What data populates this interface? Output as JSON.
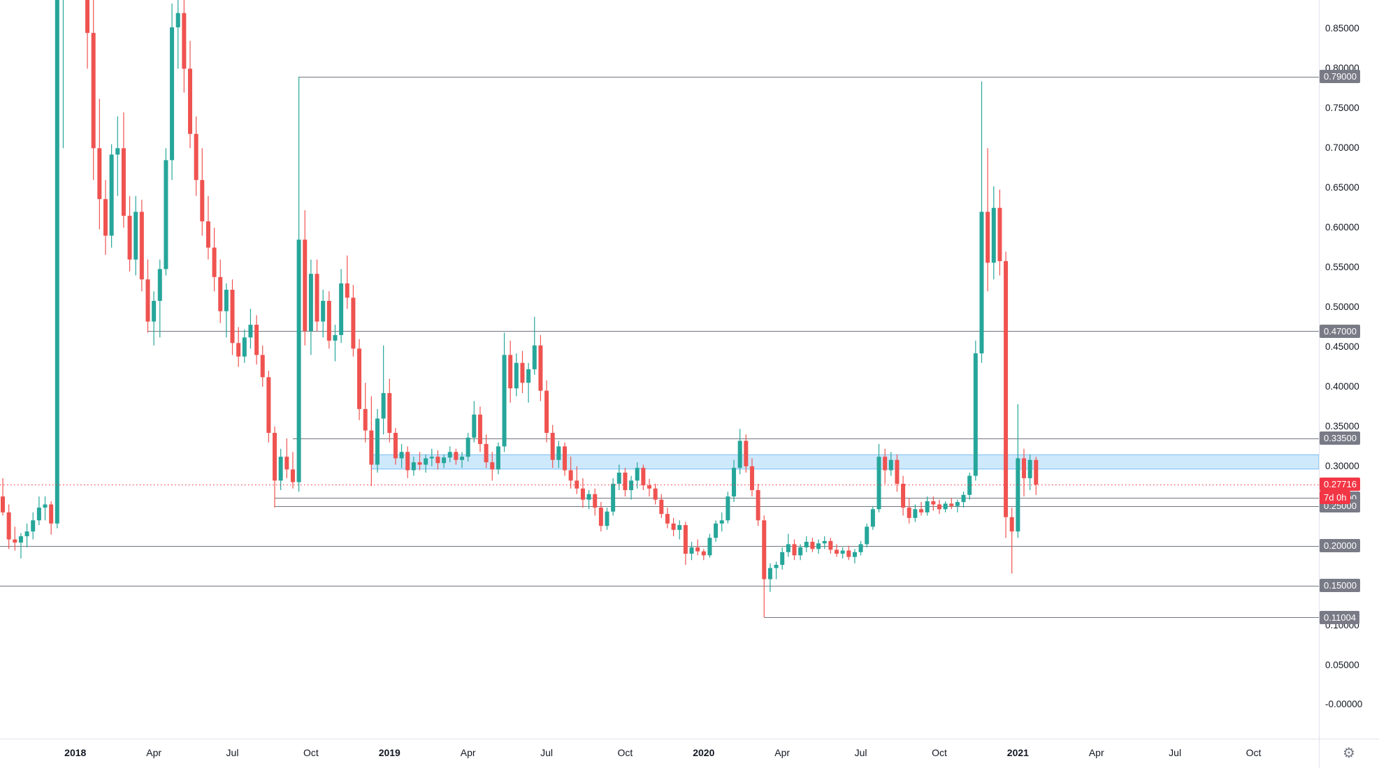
{
  "chart_data": {
    "type": "candlestick",
    "colors": {
      "up": "#26a69a",
      "down": "#ef5350",
      "current_price": "#f23645",
      "badge_bg": "#787b86",
      "line": "#71757e",
      "axis_text": "#131722",
      "separator": "#e0e3eb",
      "zone_fill": "rgba(33,150,243,0.22)",
      "zone_border": "rgba(33,150,243,0.55)"
    },
    "price_axis": {
      "price_top": 0.8864,
      "price_bottom": -0.0426,
      "ticks": [
        {
          "label": "0.85000",
          "value": 0.85
        },
        {
          "label": "0.80000",
          "value": 0.8
        },
        {
          "label": "0.75000",
          "value": 0.75
        },
        {
          "label": "0.70000",
          "value": 0.7
        },
        {
          "label": "0.65000",
          "value": 0.65
        },
        {
          "label": "0.60000",
          "value": 0.6
        },
        {
          "label": "0.55000",
          "value": 0.55
        },
        {
          "label": "0.50000",
          "value": 0.5
        },
        {
          "label": "0.45000",
          "value": 0.45
        },
        {
          "label": "0.40000",
          "value": 0.4
        },
        {
          "label": "0.35000",
          "value": 0.35
        },
        {
          "label": "0.30000",
          "value": 0.3
        },
        {
          "label": "0.25000",
          "value": 0.25
        },
        {
          "label": "0.20000",
          "value": 0.2
        },
        {
          "label": "0.15000",
          "value": 0.15
        },
        {
          "label": "0.10000",
          "value": 0.1
        },
        {
          "label": "0.05000",
          "value": 0.05
        },
        {
          "label": "-0.00000",
          "value": 0.0
        }
      ]
    },
    "time_axis": {
      "labels": [
        {
          "label": "2018",
          "index": 12,
          "major": true
        },
        {
          "label": "Apr",
          "index": 25
        },
        {
          "label": "Jul",
          "index": 38
        },
        {
          "label": "Oct",
          "index": 51
        },
        {
          "label": "2019",
          "index": 64,
          "major": true
        },
        {
          "label": "Apr",
          "index": 77
        },
        {
          "label": "Jul",
          "index": 90
        },
        {
          "label": "Oct",
          "index": 103
        },
        {
          "label": "2020",
          "index": 116,
          "major": true
        },
        {
          "label": "Apr",
          "index": 129
        },
        {
          "label": "Jul",
          "index": 142
        },
        {
          "label": "Oct",
          "index": 155
        },
        {
          "label": "2021",
          "index": 168,
          "major": true
        },
        {
          "label": "Apr",
          "index": 181
        },
        {
          "label": "Jul",
          "index": 194
        },
        {
          "label": "Oct",
          "index": 207
        }
      ]
    },
    "horizontal_lines": [
      {
        "price": 0.79,
        "label": "0.79000",
        "start_index": 49
      },
      {
        "price": 0.47,
        "label": "0.47000",
        "start_index": 24
      },
      {
        "price": 0.335,
        "label": "0.33500",
        "start_index": 48
      },
      {
        "price": 0.26,
        "label": "0.26000",
        "start_index": 45
      },
      {
        "price": 0.25,
        "label": "0.25000",
        "start_index": 45
      },
      {
        "price": 0.2,
        "label": "0.20000",
        "start_index": 0
      },
      {
        "price": 0.15,
        "label": "0.15000",
        "start_index": 0
      },
      {
        "price": 0.11004,
        "label": "0.11004",
        "start_index": 126
      }
    ],
    "zone": {
      "top": 0.3145,
      "bottom": 0.2965,
      "start_index": 61
    },
    "current_price": {
      "value": 0.27716,
      "label": "0.27716",
      "countdown": "7d 0h"
    },
    "candles": [
      [
        0.262,
        0.285,
        0.238,
        0.242
      ],
      [
        0.242,
        0.252,
        0.196,
        0.208
      ],
      [
        0.208,
        0.224,
        0.194,
        0.204
      ],
      [
        0.204,
        0.216,
        0.184,
        0.212
      ],
      [
        0.212,
        0.228,
        0.198,
        0.218
      ],
      [
        0.218,
        0.242,
        0.208,
        0.232
      ],
      [
        0.232,
        0.262,
        0.226,
        0.248
      ],
      [
        0.248,
        0.262,
        0.232,
        0.252
      ],
      [
        0.252,
        0.256,
        0.214,
        0.228
      ],
      [
        0.228,
        1.05,
        0.222,
        0.96
      ],
      [
        0.96,
        1.38,
        0.7,
        1.3
      ],
      [
        1.3,
        2.15,
        1.12,
        1.98
      ],
      [
        1.98,
        3.32,
        1.86,
        3.05
      ],
      [
        3.05,
        3.3,
        1.18,
        1.45
      ],
      [
        1.45,
        1.52,
        0.8,
        0.845
      ],
      [
        0.845,
        0.91,
        0.66,
        0.7
      ],
      [
        0.7,
        0.762,
        0.598,
        0.636
      ],
      [
        0.636,
        0.66,
        0.566,
        0.59
      ],
      [
        0.59,
        0.705,
        0.575,
        0.692
      ],
      [
        0.692,
        0.74,
        0.64,
        0.7
      ],
      [
        0.7,
        0.745,
        0.6,
        0.615
      ],
      [
        0.615,
        0.64,
        0.545,
        0.56
      ],
      [
        0.56,
        0.64,
        0.54,
        0.62
      ],
      [
        0.62,
        0.635,
        0.52,
        0.535
      ],
      [
        0.535,
        0.56,
        0.468,
        0.482
      ],
      [
        0.482,
        0.52,
        0.452,
        0.508
      ],
      [
        0.508,
        0.56,
        0.462,
        0.548
      ],
      [
        0.548,
        0.7,
        0.54,
        0.685
      ],
      [
        0.685,
        0.882,
        0.66,
        0.852
      ],
      [
        0.852,
        0.935,
        0.8,
        0.87
      ],
      [
        0.87,
        0.89,
        0.77,
        0.8
      ],
      [
        0.8,
        0.835,
        0.7,
        0.718
      ],
      [
        0.718,
        0.74,
        0.64,
        0.66
      ],
      [
        0.66,
        0.7,
        0.59,
        0.608
      ],
      [
        0.608,
        0.64,
        0.56,
        0.575
      ],
      [
        0.575,
        0.6,
        0.52,
        0.538
      ],
      [
        0.538,
        0.56,
        0.48,
        0.495
      ],
      [
        0.495,
        0.53,
        0.462,
        0.522
      ],
      [
        0.522,
        0.535,
        0.44,
        0.455
      ],
      [
        0.455,
        0.475,
        0.425,
        0.438
      ],
      [
        0.438,
        0.472,
        0.43,
        0.462
      ],
      [
        0.462,
        0.498,
        0.448,
        0.478
      ],
      [
        0.478,
        0.49,
        0.428,
        0.44
      ],
      [
        0.44,
        0.452,
        0.4,
        0.412
      ],
      [
        0.412,
        0.42,
        0.33,
        0.342
      ],
      [
        0.342,
        0.35,
        0.248,
        0.282
      ],
      [
        0.282,
        0.322,
        0.27,
        0.312
      ],
      [
        0.312,
        0.335,
        0.285,
        0.296
      ],
      [
        0.296,
        0.318,
        0.272,
        0.28
      ],
      [
        0.28,
        0.79,
        0.268,
        0.585
      ],
      [
        0.585,
        0.622,
        0.452,
        0.47
      ],
      [
        0.47,
        0.56,
        0.44,
        0.542
      ],
      [
        0.542,
        0.56,
        0.47,
        0.482
      ],
      [
        0.482,
        0.522,
        0.462,
        0.508
      ],
      [
        0.508,
        0.52,
        0.448,
        0.458
      ],
      [
        0.458,
        0.478,
        0.432,
        0.465
      ],
      [
        0.465,
        0.548,
        0.455,
        0.53
      ],
      [
        0.53,
        0.565,
        0.498,
        0.512
      ],
      [
        0.512,
        0.528,
        0.438,
        0.448
      ],
      [
        0.448,
        0.46,
        0.358,
        0.372
      ],
      [
        0.372,
        0.405,
        0.33,
        0.345
      ],
      [
        0.345,
        0.388,
        0.275,
        0.302
      ],
      [
        0.302,
        0.372,
        0.292,
        0.36
      ],
      [
        0.36,
        0.452,
        0.34,
        0.392
      ],
      [
        0.392,
        0.41,
        0.33,
        0.342
      ],
      [
        0.342,
        0.348,
        0.302,
        0.31
      ],
      [
        0.31,
        0.328,
        0.298,
        0.318
      ],
      [
        0.318,
        0.325,
        0.285,
        0.295
      ],
      [
        0.295,
        0.312,
        0.288,
        0.305
      ],
      [
        0.305,
        0.318,
        0.295,
        0.302
      ],
      [
        0.302,
        0.315,
        0.292,
        0.31
      ],
      [
        0.31,
        0.322,
        0.3,
        0.312
      ],
      [
        0.312,
        0.32,
        0.296,
        0.304
      ],
      [
        0.304,
        0.315,
        0.298,
        0.311
      ],
      [
        0.311,
        0.325,
        0.305,
        0.318
      ],
      [
        0.318,
        0.322,
        0.302,
        0.308
      ],
      [
        0.308,
        0.318,
        0.298,
        0.312
      ],
      [
        0.312,
        0.342,
        0.306,
        0.336
      ],
      [
        0.336,
        0.382,
        0.33,
        0.365
      ],
      [
        0.365,
        0.375,
        0.318,
        0.328
      ],
      [
        0.328,
        0.34,
        0.298,
        0.305
      ],
      [
        0.305,
        0.318,
        0.282,
        0.296
      ],
      [
        0.296,
        0.33,
        0.29,
        0.325
      ],
      [
        0.325,
        0.468,
        0.318,
        0.44
      ],
      [
        0.44,
        0.458,
        0.38,
        0.398
      ],
      [
        0.398,
        0.442,
        0.388,
        0.43
      ],
      [
        0.43,
        0.445,
        0.392,
        0.405
      ],
      [
        0.405,
        0.43,
        0.38,
        0.422
      ],
      [
        0.422,
        0.488,
        0.415,
        0.452
      ],
      [
        0.452,
        0.465,
        0.382,
        0.395
      ],
      [
        0.395,
        0.408,
        0.33,
        0.342
      ],
      [
        0.342,
        0.352,
        0.298,
        0.308
      ],
      [
        0.308,
        0.332,
        0.298,
        0.325
      ],
      [
        0.325,
        0.33,
        0.288,
        0.295
      ],
      [
        0.295,
        0.312,
        0.272,
        0.282
      ],
      [
        0.282,
        0.3,
        0.265,
        0.272
      ],
      [
        0.272,
        0.285,
        0.248,
        0.258
      ],
      [
        0.258,
        0.27,
        0.246,
        0.265
      ],
      [
        0.265,
        0.272,
        0.238,
        0.248
      ],
      [
        0.248,
        0.255,
        0.218,
        0.225
      ],
      [
        0.225,
        0.248,
        0.22,
        0.243
      ],
      [
        0.243,
        0.285,
        0.238,
        0.278
      ],
      [
        0.278,
        0.302,
        0.27,
        0.292
      ],
      [
        0.292,
        0.298,
        0.262,
        0.27
      ],
      [
        0.27,
        0.288,
        0.258,
        0.282
      ],
      [
        0.282,
        0.305,
        0.272,
        0.298
      ],
      [
        0.298,
        0.302,
        0.27,
        0.276
      ],
      [
        0.276,
        0.284,
        0.262,
        0.272
      ],
      [
        0.272,
        0.278,
        0.252,
        0.258
      ],
      [
        0.258,
        0.265,
        0.235,
        0.24
      ],
      [
        0.24,
        0.248,
        0.222,
        0.228
      ],
      [
        0.228,
        0.235,
        0.212,
        0.22
      ],
      [
        0.22,
        0.232,
        0.208,
        0.226
      ],
      [
        0.226,
        0.23,
        0.176,
        0.19
      ],
      [
        0.19,
        0.205,
        0.182,
        0.198
      ],
      [
        0.198,
        0.208,
        0.188,
        0.193
      ],
      [
        0.193,
        0.196,
        0.182,
        0.188
      ],
      [
        0.188,
        0.215,
        0.185,
        0.21
      ],
      [
        0.21,
        0.232,
        0.205,
        0.228
      ],
      [
        0.228,
        0.242,
        0.218,
        0.232
      ],
      [
        0.232,
        0.268,
        0.228,
        0.262
      ],
      [
        0.262,
        0.308,
        0.255,
        0.298
      ],
      [
        0.298,
        0.347,
        0.29,
        0.332
      ],
      [
        0.332,
        0.34,
        0.292,
        0.3
      ],
      [
        0.3,
        0.31,
        0.262,
        0.27
      ],
      [
        0.27,
        0.278,
        0.225,
        0.232
      ],
      [
        0.232,
        0.238,
        0.11,
        0.158
      ],
      [
        0.158,
        0.178,
        0.142,
        0.172
      ],
      [
        0.172,
        0.18,
        0.158,
        0.176
      ],
      [
        0.176,
        0.198,
        0.17,
        0.192
      ],
      [
        0.192,
        0.215,
        0.186,
        0.202
      ],
      [
        0.202,
        0.208,
        0.182,
        0.188
      ],
      [
        0.188,
        0.202,
        0.182,
        0.198
      ],
      [
        0.198,
        0.212,
        0.192,
        0.205
      ],
      [
        0.205,
        0.21,
        0.192,
        0.196
      ],
      [
        0.196,
        0.208,
        0.19,
        0.203
      ],
      [
        0.203,
        0.212,
        0.196,
        0.206
      ],
      [
        0.206,
        0.21,
        0.19,
        0.195
      ],
      [
        0.195,
        0.202,
        0.186,
        0.19
      ],
      [
        0.19,
        0.198,
        0.184,
        0.194
      ],
      [
        0.194,
        0.2,
        0.182,
        0.186
      ],
      [
        0.186,
        0.196,
        0.178,
        0.192
      ],
      [
        0.192,
        0.206,
        0.188,
        0.202
      ],
      [
        0.202,
        0.228,
        0.198,
        0.224
      ],
      [
        0.224,
        0.25,
        0.22,
        0.246
      ],
      [
        0.246,
        0.328,
        0.242,
        0.312
      ],
      [
        0.312,
        0.322,
        0.278,
        0.295
      ],
      [
        0.295,
        0.318,
        0.288,
        0.308
      ],
      [
        0.308,
        0.315,
        0.268,
        0.278
      ],
      [
        0.278,
        0.288,
        0.238,
        0.248
      ],
      [
        0.248,
        0.26,
        0.228,
        0.235
      ],
      [
        0.235,
        0.252,
        0.23,
        0.246
      ],
      [
        0.246,
        0.255,
        0.238,
        0.242
      ],
      [
        0.242,
        0.262,
        0.238,
        0.256
      ],
      [
        0.256,
        0.262,
        0.244,
        0.252
      ],
      [
        0.252,
        0.258,
        0.24,
        0.246
      ],
      [
        0.246,
        0.256,
        0.242,
        0.253
      ],
      [
        0.253,
        0.26,
        0.246,
        0.25
      ],
      [
        0.25,
        0.258,
        0.242,
        0.255
      ],
      [
        0.255,
        0.268,
        0.248,
        0.264
      ],
      [
        0.264,
        0.292,
        0.258,
        0.288
      ],
      [
        0.288,
        0.458,
        0.282,
        0.442
      ],
      [
        0.442,
        0.784,
        0.43,
        0.62
      ],
      [
        0.62,
        0.7,
        0.52,
        0.556
      ],
      [
        0.556,
        0.652,
        0.535,
        0.625
      ],
      [
        0.625,
        0.648,
        0.54,
        0.558
      ],
      [
        0.558,
        0.57,
        0.21,
        0.236
      ],
      [
        0.236,
        0.248,
        0.165,
        0.218
      ],
      [
        0.218,
        0.378,
        0.21,
        0.31
      ],
      [
        0.31,
        0.322,
        0.262,
        0.285
      ],
      [
        0.285,
        0.315,
        0.27,
        0.308
      ],
      [
        0.308,
        0.312,
        0.264,
        0.277
      ]
    ]
  },
  "settings": {
    "gear_icon": "⚙"
  }
}
